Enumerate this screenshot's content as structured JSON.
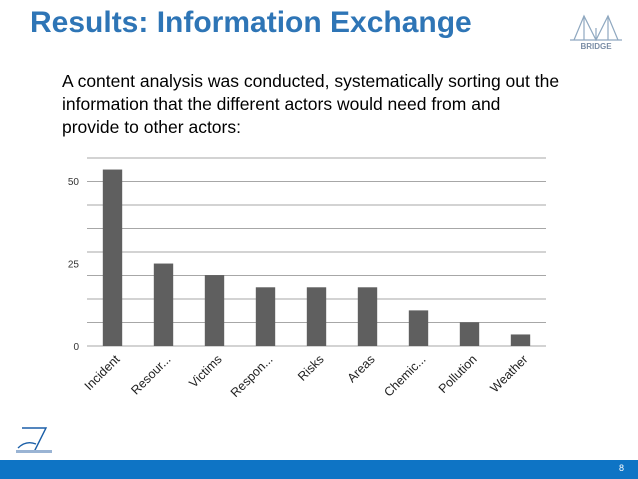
{
  "slide": {
    "title": "Results: Information Exchange",
    "intro": "A content analysis was conducted, systematically sorting out the information that the different actors would need from and provide to other actors:",
    "logo_text": "BRIDGE",
    "page_number": "8"
  },
  "colors": {
    "title": "#2e75b6",
    "bar": "#5f5f5f",
    "gridline": "#8a8a8a",
    "footer": "#0e74c5"
  },
  "chart_data": {
    "type": "bar",
    "categories": [
      "Incident",
      "Resour...",
      "Victims",
      "Respon...",
      "Risks",
      "Areas",
      "Chemic...",
      "Pollution",
      "Weather"
    ],
    "values": [
      53.5,
      25,
      21.5,
      17.8,
      17.8,
      17.8,
      10.8,
      7.2,
      3.5
    ],
    "yticks": [
      0,
      25,
      50
    ],
    "ylim": [
      0,
      57
    ],
    "grid": true,
    "title": "",
    "xlabel": "",
    "ylabel": ""
  }
}
